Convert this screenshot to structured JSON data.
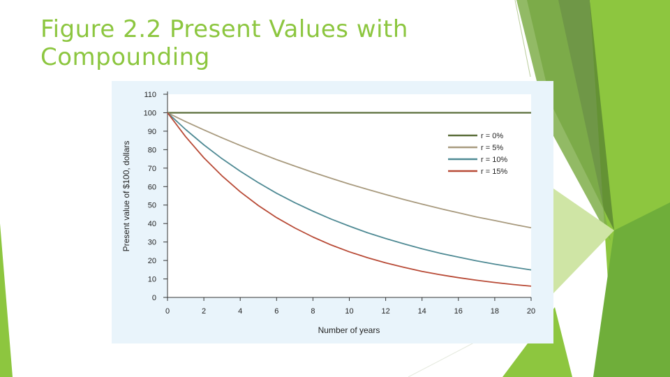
{
  "slide": {
    "title_line1": "Figure 2.2 Present Values with",
    "title_line2": "Compounding"
  },
  "colors": {
    "title": "#8cc63f",
    "panel": "#e9f4fb",
    "green_light": "#8dc63f",
    "green_dark": "#6a9a3a"
  },
  "chart_data": {
    "type": "line",
    "title": "",
    "xlabel": "Number of years",
    "ylabel": "Present value of $100, dollars",
    "xlim": [
      0,
      20
    ],
    "ylim": [
      0,
      110
    ],
    "xticks": [
      0,
      2,
      4,
      6,
      8,
      10,
      12,
      14,
      16,
      18,
      20
    ],
    "yticks": [
      0,
      10,
      20,
      30,
      40,
      50,
      60,
      70,
      80,
      90,
      100,
      110
    ],
    "grid": false,
    "legend_position": "top-right",
    "x": [
      0,
      1,
      2,
      3,
      4,
      5,
      6,
      7,
      8,
      9,
      10,
      11,
      12,
      13,
      14,
      15,
      16,
      17,
      18,
      19,
      20
    ],
    "series": [
      {
        "name": "r = 0%",
        "color": "#5a6e3a",
        "values": [
          100,
          100,
          100,
          100,
          100,
          100,
          100,
          100,
          100,
          100,
          100,
          100,
          100,
          100,
          100,
          100,
          100,
          100,
          100,
          100,
          100
        ]
      },
      {
        "name": "r = 5%",
        "color": "#a89a7e",
        "values": [
          100,
          95.2,
          90.7,
          86.4,
          82.3,
          78.4,
          74.6,
          71.1,
          67.7,
          64.5,
          61.4,
          58.5,
          55.7,
          53.0,
          50.5,
          48.1,
          45.8,
          43.6,
          41.6,
          39.6,
          37.7
        ]
      },
      {
        "name": "r = 10%",
        "color": "#4f8a94",
        "values": [
          100,
          90.9,
          82.6,
          75.1,
          68.3,
          62.1,
          56.4,
          51.3,
          46.7,
          42.4,
          38.6,
          35.0,
          31.9,
          29.0,
          26.3,
          23.9,
          21.8,
          19.8,
          18.0,
          16.4,
          14.9
        ]
      },
      {
        "name": "r = 15%",
        "color": "#b84a36",
        "values": [
          100,
          87.0,
          75.6,
          65.8,
          57.2,
          49.7,
          43.2,
          37.6,
          32.7,
          28.4,
          24.7,
          21.5,
          18.7,
          16.3,
          14.1,
          12.3,
          10.7,
          9.3,
          8.1,
          7.0,
          6.1
        ]
      }
    ]
  }
}
